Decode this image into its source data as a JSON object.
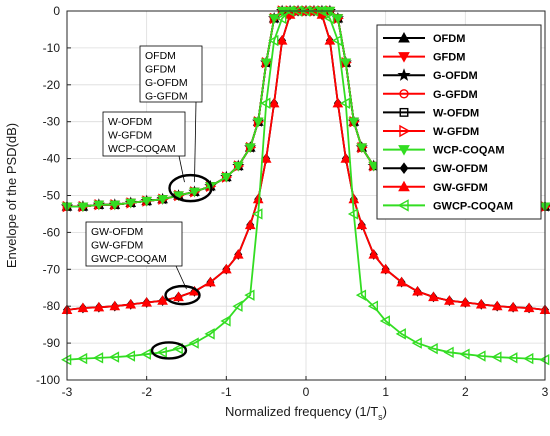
{
  "chart_data": {
    "type": "line",
    "xlabel": "Normalized frequency (1/T",
    "xlabel_sub": "s",
    "xlabel_close": ")",
    "ylabel": "Envelope of the PSD(dB)",
    "xlim": [
      -3,
      3
    ],
    "ylim": [
      -100,
      0
    ],
    "xticks": [
      -3,
      -2,
      -1,
      0,
      1,
      2,
      3
    ],
    "yticks": [
      0,
      -10,
      -20,
      -30,
      -40,
      -50,
      -60,
      -70,
      -80,
      -90,
      -100
    ],
    "grid": true,
    "legend_position": "top-right",
    "colors": {
      "black": "#000000",
      "red": "#ff0000",
      "green": "#33dd22"
    },
    "series": [
      {
        "name": "OFDM",
        "color": "#000000",
        "marker": "triangle-up",
        "x": [
          -3.0,
          -2.8,
          -2.6,
          -2.4,
          -2.2,
          -2.0,
          -1.8,
          -1.6,
          -1.4,
          -1.2,
          -1.0,
          -0.85,
          -0.7,
          -0.6,
          -0.5,
          -0.4,
          -0.3,
          -0.2,
          -0.1,
          0.0,
          0.1,
          0.2,
          0.3,
          0.4,
          0.5,
          0.6,
          0.7,
          0.85,
          1.0,
          1.2,
          1.4,
          1.6,
          1.8,
          2.0,
          2.2,
          2.4,
          2.6,
          2.8,
          3.0
        ],
        "y": [
          -53,
          -53,
          -52.5,
          -52.5,
          -52,
          -51.5,
          -51,
          -50,
          -49,
          -47.5,
          -45,
          -42,
          -37,
          -30,
          -14,
          -2,
          0,
          0,
          0,
          0,
          0,
          0,
          0,
          -2,
          -14,
          -30,
          -37,
          -42,
          -45,
          -47.5,
          -49,
          -50,
          -51,
          -51.5,
          -52,
          -52.5,
          -52.5,
          -53,
          -53
        ]
      },
      {
        "name": "GFDM",
        "color": "#ff0000",
        "marker": "triangle-down",
        "x": [
          -3.0,
          -2.8,
          -2.6,
          -2.4,
          -2.2,
          -2.0,
          -1.8,
          -1.6,
          -1.4,
          -1.2,
          -1.0,
          -0.85,
          -0.7,
          -0.6,
          -0.5,
          -0.4,
          -0.3,
          -0.2,
          -0.1,
          0.0,
          0.1,
          0.2,
          0.3,
          0.4,
          0.5,
          0.6,
          0.7,
          0.85,
          1.0,
          1.2,
          1.4,
          1.6,
          1.8,
          2.0,
          2.2,
          2.4,
          2.6,
          2.8,
          3.0
        ],
        "y": [
          -53,
          -53,
          -52.5,
          -52.5,
          -52,
          -51.5,
          -51,
          -50,
          -49,
          -47.5,
          -45,
          -42,
          -37,
          -30,
          -14,
          -2,
          0,
          0,
          0,
          0,
          0,
          0,
          0,
          -2,
          -14,
          -30,
          -37,
          -42,
          -45,
          -47.5,
          -49,
          -50,
          -51,
          -51.5,
          -52,
          -52.5,
          -52.5,
          -53,
          -53
        ]
      },
      {
        "name": "G-OFDM",
        "color": "#000000",
        "marker": "star",
        "x": [
          -3.0,
          -2.8,
          -2.6,
          -2.4,
          -2.2,
          -2.0,
          -1.8,
          -1.6,
          -1.4,
          -1.2,
          -1.0,
          -0.85,
          -0.7,
          -0.6,
          -0.5,
          -0.4,
          -0.3,
          -0.2,
          -0.1,
          0.0,
          0.1,
          0.2,
          0.3,
          0.4,
          0.5,
          0.6,
          0.7,
          0.85,
          1.0,
          1.2,
          1.4,
          1.6,
          1.8,
          2.0,
          2.2,
          2.4,
          2.6,
          2.8,
          3.0
        ],
        "y": [
          -53,
          -53,
          -52.5,
          -52.5,
          -52,
          -51.5,
          -51,
          -50,
          -49,
          -47.5,
          -45,
          -42,
          -37,
          -30,
          -14,
          -2,
          0,
          0,
          0,
          0,
          0,
          0,
          0,
          -2,
          -14,
          -30,
          -37,
          -42,
          -45,
          -47.5,
          -49,
          -50,
          -51,
          -51.5,
          -52,
          -52.5,
          -52.5,
          -53,
          -53
        ]
      },
      {
        "name": "G-GFDM",
        "color": "#ff0000",
        "marker": "circle",
        "x": [
          -3.0,
          -2.8,
          -2.6,
          -2.4,
          -2.2,
          -2.0,
          -1.8,
          -1.6,
          -1.4,
          -1.2,
          -1.0,
          -0.85,
          -0.7,
          -0.6,
          -0.5,
          -0.4,
          -0.3,
          -0.2,
          -0.1,
          0.0,
          0.1,
          0.2,
          0.3,
          0.4,
          0.5,
          0.6,
          0.7,
          0.85,
          1.0,
          1.2,
          1.4,
          1.6,
          1.8,
          2.0,
          2.2,
          2.4,
          2.6,
          2.8,
          3.0
        ],
        "y": [
          -53,
          -53,
          -52.5,
          -52.5,
          -52,
          -51.5,
          -51,
          -50,
          -49,
          -47.5,
          -45,
          -42,
          -37,
          -30,
          -14,
          -2,
          0,
          0,
          0,
          0,
          0,
          0,
          0,
          -2,
          -14,
          -30,
          -37,
          -42,
          -45,
          -47.5,
          -49,
          -50,
          -51,
          -51.5,
          -52,
          -52.5,
          -52.5,
          -53,
          -53
        ]
      },
      {
        "name": "W-OFDM",
        "color": "#000000",
        "marker": "square",
        "x": [
          -3.0,
          -2.8,
          -2.6,
          -2.4,
          -2.2,
          -2.0,
          -1.8,
          -1.6,
          -1.4,
          -1.2,
          -1.0,
          -0.85,
          -0.7,
          -0.6,
          -0.5,
          -0.4,
          -0.3,
          -0.2,
          -0.1,
          0.0,
          0.1,
          0.2,
          0.3,
          0.4,
          0.5,
          0.6,
          0.7,
          0.85,
          1.0,
          1.2,
          1.4,
          1.6,
          1.8,
          2.0,
          2.2,
          2.4,
          2.6,
          2.8,
          3.0
        ],
        "y": [
          -53,
          -53,
          -52.5,
          -52.5,
          -52,
          -51.5,
          -51,
          -50,
          -49,
          -47.5,
          -45,
          -42,
          -37,
          -30,
          -14,
          -2,
          0,
          0,
          0,
          0,
          0,
          0,
          0,
          -2,
          -14,
          -30,
          -37,
          -42,
          -45,
          -47.5,
          -49,
          -50,
          -51,
          -51.5,
          -52,
          -52.5,
          -52.5,
          -53,
          -53
        ]
      },
      {
        "name": "W-GFDM",
        "color": "#ff0000",
        "marker": "triangle-right",
        "x": [
          -3.0,
          -2.8,
          -2.6,
          -2.4,
          -2.2,
          -2.0,
          -1.8,
          -1.6,
          -1.4,
          -1.2,
          -1.0,
          -0.85,
          -0.7,
          -0.6,
          -0.5,
          -0.4,
          -0.3,
          -0.2,
          -0.1,
          0.0,
          0.1,
          0.2,
          0.3,
          0.4,
          0.5,
          0.6,
          0.7,
          0.85,
          1.0,
          1.2,
          1.4,
          1.6,
          1.8,
          2.0,
          2.2,
          2.4,
          2.6,
          2.8,
          3.0
        ],
        "y": [
          -53,
          -53,
          -52.5,
          -52.5,
          -52,
          -51.5,
          -51,
          -50,
          -49,
          -47.5,
          -45,
          -42,
          -37,
          -30,
          -14,
          -2,
          0,
          0,
          0,
          0,
          0,
          0,
          0,
          -2,
          -14,
          -30,
          -37,
          -42,
          -45,
          -47.5,
          -49,
          -50,
          -51,
          -51.5,
          -52,
          -52.5,
          -52.5,
          -53,
          -53
        ]
      },
      {
        "name": "WCP-COQAM",
        "color": "#33dd22",
        "marker": "triangle-down",
        "x": [
          -3.0,
          -2.8,
          -2.6,
          -2.4,
          -2.2,
          -2.0,
          -1.8,
          -1.6,
          -1.4,
          -1.2,
          -1.0,
          -0.85,
          -0.7,
          -0.6,
          -0.5,
          -0.4,
          -0.3,
          -0.2,
          -0.1,
          0.0,
          0.1,
          0.2,
          0.3,
          0.4,
          0.5,
          0.6,
          0.7,
          0.85,
          1.0,
          1.2,
          1.4,
          1.6,
          1.8,
          2.0,
          2.2,
          2.4,
          2.6,
          2.8,
          3.0
        ],
        "y": [
          -53,
          -53,
          -52.5,
          -52.5,
          -52,
          -51.5,
          -51,
          -50,
          -49,
          -47.5,
          -45,
          -42,
          -37,
          -30,
          -14,
          -2,
          0,
          0,
          0,
          0,
          0,
          0,
          0,
          -2,
          -14,
          -30,
          -37,
          -42,
          -45,
          -47.5,
          -49,
          -50,
          -51,
          -51.5,
          -52,
          -52.5,
          -52.5,
          -53,
          -53
        ]
      },
      {
        "name": "GW-OFDM",
        "color": "#000000",
        "marker": "diamond",
        "x": [
          -3.0,
          -2.8,
          -2.6,
          -2.4,
          -2.2,
          -2.0,
          -1.8,
          -1.6,
          -1.4,
          -1.2,
          -1.0,
          -0.85,
          -0.7,
          -0.6,
          -0.5,
          -0.4,
          -0.3,
          -0.2,
          -0.1,
          0.0,
          0.1,
          0.2,
          0.3,
          0.4,
          0.5,
          0.6,
          0.7,
          0.85,
          1.0,
          1.2,
          1.4,
          1.6,
          1.8,
          2.0,
          2.2,
          2.4,
          2.6,
          2.8,
          3.0
        ],
        "y": [
          -81,
          -80.5,
          -80.3,
          -80,
          -79.5,
          -79,
          -78.5,
          -77.5,
          -76,
          -73.5,
          -70,
          -66,
          -58,
          -51,
          -40,
          -25,
          -8,
          -1,
          0,
          0,
          0,
          -1,
          -8,
          -25,
          -40,
          -51,
          -58,
          -66,
          -70,
          -73.5,
          -76,
          -77.5,
          -78.5,
          -79,
          -79.5,
          -80,
          -80.3,
          -80.5,
          -81
        ]
      },
      {
        "name": "GW-GFDM",
        "color": "#ff0000",
        "marker": "triangle-up",
        "x": [
          -3.0,
          -2.8,
          -2.6,
          -2.4,
          -2.2,
          -2.0,
          -1.8,
          -1.6,
          -1.4,
          -1.2,
          -1.0,
          -0.85,
          -0.7,
          -0.6,
          -0.5,
          -0.4,
          -0.3,
          -0.2,
          -0.1,
          0.0,
          0.1,
          0.2,
          0.3,
          0.4,
          0.5,
          0.6,
          0.7,
          0.85,
          1.0,
          1.2,
          1.4,
          1.6,
          1.8,
          2.0,
          2.2,
          2.4,
          2.6,
          2.8,
          3.0
        ],
        "y": [
          -81,
          -80.5,
          -80.3,
          -80,
          -79.5,
          -79,
          -78.5,
          -77.5,
          -76,
          -73.5,
          -70,
          -66,
          -58,
          -51,
          -40,
          -25,
          -8,
          -1,
          0,
          0,
          0,
          -1,
          -8,
          -25,
          -40,
          -51,
          -58,
          -66,
          -70,
          -73.5,
          -76,
          -77.5,
          -78.5,
          -79,
          -79.5,
          -80,
          -80.3,
          -80.5,
          -81
        ]
      },
      {
        "name": "GWCP-COQAM",
        "color": "#33dd22",
        "marker": "triangle-left",
        "x": [
          -3.0,
          -2.8,
          -2.6,
          -2.4,
          -2.2,
          -2.0,
          -1.8,
          -1.6,
          -1.4,
          -1.2,
          -1.0,
          -0.85,
          -0.7,
          -0.6,
          -0.5,
          -0.4,
          -0.3,
          -0.2,
          -0.1,
          0.0,
          0.1,
          0.2,
          0.3,
          0.4,
          0.5,
          0.6,
          0.7,
          0.85,
          1.0,
          1.2,
          1.4,
          1.6,
          1.8,
          2.0,
          2.2,
          2.4,
          2.6,
          2.8,
          3.0
        ],
        "y": [
          -94.5,
          -94.2,
          -94,
          -93.8,
          -93.5,
          -93,
          -92.5,
          -91.5,
          -90,
          -87.5,
          -84,
          -80,
          -77,
          -55,
          -25,
          -8,
          -2,
          0,
          0,
          0,
          0,
          0,
          -2,
          -8,
          -25,
          -55,
          -77,
          -80,
          -84,
          -87.5,
          -90,
          -91.5,
          -92.5,
          -93,
          -93.5,
          -93.8,
          -94,
          -94.2,
          -94.5
        ]
      }
    ],
    "annotations": [
      {
        "lines": [
          "OFDM",
          "GFDM",
          "G-OFDM",
          "G-GFDM"
        ],
        "target_x": -1.45,
        "target_y": -48
      },
      {
        "lines": [
          "W-OFDM",
          "W-GFDM",
          "WCP-COQAM"
        ],
        "target_x": -1.45,
        "target_y": -48
      },
      {
        "lines": [
          "GW-OFDM",
          "GW-GFDM",
          "GWCP-COQAM"
        ],
        "target_x": -1.55,
        "target_y": -77
      },
      {
        "lines": [],
        "target_x": -1.72,
        "target_y": -92
      }
    ]
  }
}
